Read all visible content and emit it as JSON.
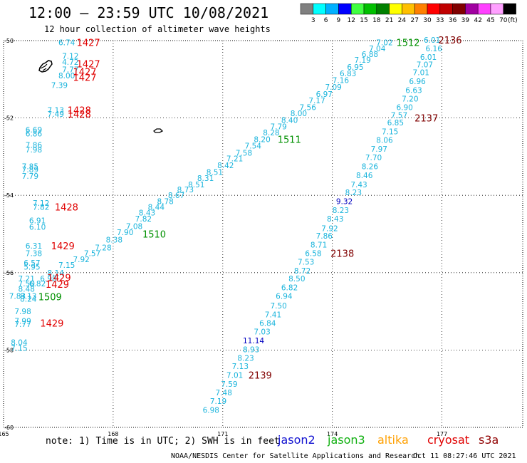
{
  "title": "12:00 – 23:59 UTC 10/08/2021",
  "subtitle": "12 hour collection of altimeter wave heights",
  "colorbar": {
    "unit": "(ft)",
    "entries": [
      {
        "color": "#808080",
        "label": "3"
      },
      {
        "color": "#00ffff",
        "label": "6"
      },
      {
        "color": "#00b0ff",
        "label": "9"
      },
      {
        "color": "#0000ff",
        "label": "12"
      },
      {
        "color": "#40ff40",
        "label": "15"
      },
      {
        "color": "#00c000",
        "label": "18"
      },
      {
        "color": "#008000",
        "label": "21"
      },
      {
        "color": "#ffff00",
        "label": "24"
      },
      {
        "color": "#ffc000",
        "label": "27"
      },
      {
        "color": "#ff8000",
        "label": "30"
      },
      {
        "color": "#ff0000",
        "label": "33"
      },
      {
        "color": "#c00000",
        "label": "36"
      },
      {
        "color": "#800000",
        "label": "39"
      },
      {
        "color": "#a000a0",
        "label": "42"
      },
      {
        "color": "#ff40ff",
        "label": "45"
      },
      {
        "color": "#ffa0ff",
        "label": "70"
      },
      {
        "color": "#000000",
        "label": ""
      }
    ]
  },
  "map": {
    "lon_labels": [
      "165",
      "168",
      "171",
      "174",
      "177"
    ],
    "lat_labels": [
      "-50",
      "-52",
      "-54",
      "-56",
      "-58",
      "-60"
    ],
    "grid_lons": [
      168,
      171,
      174,
      177
    ],
    "grid_lats": [
      -52,
      -54,
      -56,
      -58
    ]
  },
  "colors": {
    "swh_cyan": "#1ab4dc",
    "swh_blue": "#0000c0",
    "time_red": "#e00000",
    "time_green": "#009000",
    "time_darkred": "#800000"
  },
  "swh_labels": [
    {
      "t": "6.74",
      "lon": 166.5,
      "lat": -50.05
    },
    {
      "t": "7.12",
      "lon": 166.6,
      "lat": -50.4
    },
    {
      "t": "4.72",
      "lon": 166.6,
      "lat": -50.55
    },
    {
      "t": "7.77",
      "lon": 166.6,
      "lat": -50.75
    },
    {
      "t": "8.00",
      "lon": 166.5,
      "lat": -50.9
    },
    {
      "t": "7.39",
      "lon": 166.3,
      "lat": -51.15
    },
    {
      "t": "7.13",
      "lon": 166.2,
      "lat": -51.8
    },
    {
      "t": "7.49",
      "lon": 166.2,
      "lat": -51.9
    },
    {
      "t": "6.69",
      "lon": 165.6,
      "lat": -52.3
    },
    {
      "t": "6.86",
      "lon": 165.6,
      "lat": -52.4
    },
    {
      "t": "7.86",
      "lon": 165.6,
      "lat": -52.7
    },
    {
      "t": "7.98",
      "lon": 165.6,
      "lat": -52.82
    },
    {
      "t": "7.85",
      "lon": 165.5,
      "lat": -53.25
    },
    {
      "t": "7.89",
      "lon": 165.5,
      "lat": -53.33
    },
    {
      "t": "7.79",
      "lon": 165.5,
      "lat": -53.5
    },
    {
      "t": "7.12",
      "lon": 165.8,
      "lat": -54.2
    },
    {
      "t": "7.82",
      "lon": 165.8,
      "lat": -54.3
    },
    {
      "t": "6.91",
      "lon": 165.7,
      "lat": -54.65
    },
    {
      "t": "6.10",
      "lon": 165.7,
      "lat": -54.82
    },
    {
      "t": "6.31",
      "lon": 165.6,
      "lat": -55.3
    },
    {
      "t": "7.38",
      "lon": 165.6,
      "lat": -55.5
    },
    {
      "t": "6.57",
      "lon": 165.55,
      "lat": -55.75
    },
    {
      "t": "5.95",
      "lon": 165.55,
      "lat": -55.85
    },
    {
      "t": "7.21",
      "lon": 165.4,
      "lat": -56.15
    },
    {
      "t": "7.50",
      "lon": 165.4,
      "lat": -56.28
    },
    {
      "t": "6.82",
      "lon": 165.7,
      "lat": -56.28
    },
    {
      "t": "8.48",
      "lon": 165.4,
      "lat": -56.42
    },
    {
      "t": "7.83",
      "lon": 165.15,
      "lat": -56.6
    },
    {
      "t": "8.13",
      "lon": 165.45,
      "lat": -56.6
    },
    {
      "t": "8.24",
      "lon": 165.45,
      "lat": -56.68
    },
    {
      "t": "7.98",
      "lon": 165.3,
      "lat": -57.0
    },
    {
      "t": "7.99",
      "lon": 165.3,
      "lat": -57.25
    },
    {
      "t": "7.77",
      "lon": 165.3,
      "lat": -57.33
    },
    {
      "t": "8.04",
      "lon": 165.2,
      "lat": -57.8
    },
    {
      "t": "7.15",
      "lon": 165.2,
      "lat": -57.95
    },
    {
      "t": "8.14",
      "lon": 166.2,
      "lat": -56.0
    },
    {
      "t": "6.98",
      "lon": 166.0,
      "lat": -56.15
    },
    {
      "t": "7.15",
      "lon": 166.5,
      "lat": -55.8
    },
    {
      "t": "7.92",
      "lon": 166.9,
      "lat": -55.65
    },
    {
      "t": "7.57",
      "lon": 167.2,
      "lat": -55.5
    },
    {
      "t": "7.28",
      "lon": 167.5,
      "lat": -55.35
    },
    {
      "t": "8.38",
      "lon": 167.8,
      "lat": -55.15
    },
    {
      "t": "7.90",
      "lon": 168.1,
      "lat": -54.95
    },
    {
      "t": "7.08",
      "lon": 168.35,
      "lat": -54.8
    },
    {
      "t": "7.82",
      "lon": 168.6,
      "lat": -54.6
    },
    {
      "t": "8.43",
      "lon": 168.7,
      "lat": -54.45
    },
    {
      "t": "8.44",
      "lon": 168.95,
      "lat": -54.3
    },
    {
      "t": "8.78",
      "lon": 169.2,
      "lat": -54.15
    },
    {
      "t": "8.67",
      "lon": 169.5,
      "lat": -54.0
    },
    {
      "t": "8.73",
      "lon": 169.75,
      "lat": -53.85
    },
    {
      "t": "8.51",
      "lon": 170.05,
      "lat": -53.72
    },
    {
      "t": "8.31",
      "lon": 170.3,
      "lat": -53.55
    },
    {
      "t": "8.51",
      "lon": 170.55,
      "lat": -53.4
    },
    {
      "t": "8.42",
      "lon": 170.85,
      "lat": -53.22
    },
    {
      "t": "7.21",
      "lon": 171.1,
      "lat": -53.05
    },
    {
      "t": "7.58",
      "lon": 171.35,
      "lat": -52.9
    },
    {
      "t": "7.54",
      "lon": 171.6,
      "lat": -52.72
    },
    {
      "t": "8.20",
      "lon": 171.85,
      "lat": -52.55
    },
    {
      "t": "8.28",
      "lon": 172.1,
      "lat": -52.38
    },
    {
      "t": "7.79",
      "lon": 172.3,
      "lat": -52.22
    },
    {
      "t": "8.40",
      "lon": 172.6,
      "lat": -52.05
    },
    {
      "t": "8.00",
      "lon": 172.85,
      "lat": -51.88
    },
    {
      "t": "7.56",
      "lon": 173.1,
      "lat": -51.72
    },
    {
      "t": "7.17",
      "lon": 173.35,
      "lat": -51.55
    },
    {
      "t": "6.97",
      "lon": 173.55,
      "lat": -51.38
    },
    {
      "t": "7.09",
      "lon": 173.8,
      "lat": -51.2
    },
    {
      "t": "7.16",
      "lon": 174.0,
      "lat": -51.02
    },
    {
      "t": "6.83",
      "lon": 174.2,
      "lat": -50.85
    },
    {
      "t": "6.95",
      "lon": 174.4,
      "lat": -50.68
    },
    {
      "t": "7.19",
      "lon": 174.6,
      "lat": -50.5
    },
    {
      "t": "6.88",
      "lon": 174.8,
      "lat": -50.35
    },
    {
      "t": "7.04",
      "lon": 175.0,
      "lat": -50.2
    },
    {
      "t": "7.02",
      "lon": 175.2,
      "lat": -50.05
    },
    {
      "t": "6.01",
      "lon": 176.5,
      "lat": -49.98
    },
    {
      "t": "6.16",
      "lon": 176.55,
      "lat": -50.2
    },
    {
      "t": "6.01",
      "lon": 176.4,
      "lat": -50.42
    },
    {
      "t": "7.07",
      "lon": 176.3,
      "lat": -50.62
    },
    {
      "t": "7.01",
      "lon": 176.2,
      "lat": -50.82
    },
    {
      "t": "6.96",
      "lon": 176.1,
      "lat": -51.05
    },
    {
      "t": "6.63",
      "lon": 176.0,
      "lat": -51.28
    },
    {
      "t": "7.20",
      "lon": 175.9,
      "lat": -51.5
    },
    {
      "t": "6.90",
      "lon": 175.75,
      "lat": -51.72
    },
    {
      "t": "7.57",
      "lon": 175.6,
      "lat": -51.92
    },
    {
      "t": "6.85",
      "lon": 175.5,
      "lat": -52.12
    },
    {
      "t": "7.15",
      "lon": 175.35,
      "lat": -52.35
    },
    {
      "t": "8.06",
      "lon": 175.2,
      "lat": -52.57
    },
    {
      "t": "7.97",
      "lon": 175.05,
      "lat": -52.8
    },
    {
      "t": "7.70",
      "lon": 174.9,
      "lat": -53.02
    },
    {
      "t": "8.26",
      "lon": 174.8,
      "lat": -53.25
    },
    {
      "t": "8.46",
      "lon": 174.65,
      "lat": -53.48
    },
    {
      "t": "7.43",
      "lon": 174.5,
      "lat": -53.72
    },
    {
      "t": "8.23",
      "lon": 174.35,
      "lat": -53.92
    },
    {
      "t": "9.32",
      "lon": 174.1,
      "lat": -54.15
    },
    {
      "t": "8.23",
      "lon": 174.0,
      "lat": -54.38
    },
    {
      "t": "8.43",
      "lon": 173.85,
      "lat": -54.6
    },
    {
      "t": "7.92",
      "lon": 173.7,
      "lat": -54.85
    },
    {
      "t": "7.86",
      "lon": 173.55,
      "lat": -55.05
    },
    {
      "t": "8.71",
      "lon": 173.4,
      "lat": -55.28
    },
    {
      "t": "6.58",
      "lon": 173.25,
      "lat": -55.5
    },
    {
      "t": "7.53",
      "lon": 173.05,
      "lat": -55.72
    },
    {
      "t": "8.72",
      "lon": 172.95,
      "lat": -55.95
    },
    {
      "t": "8.50",
      "lon": 172.8,
      "lat": -56.15
    },
    {
      "t": "6.82",
      "lon": 172.6,
      "lat": -56.38
    },
    {
      "t": "6.94",
      "lon": 172.45,
      "lat": -56.6
    },
    {
      "t": "7.50",
      "lon": 172.3,
      "lat": -56.85
    },
    {
      "t": "7.41",
      "lon": 172.15,
      "lat": -57.08
    },
    {
      "t": "6.84",
      "lon": 172.0,
      "lat": -57.3
    },
    {
      "t": "7.03",
      "lon": 171.85,
      "lat": -57.52
    },
    {
      "t": "11.14",
      "lon": 171.55,
      "lat": -57.75
    },
    {
      "t": "8.93",
      "lon": 171.55,
      "lat": -57.98
    },
    {
      "t": "8.23",
      "lon": 171.4,
      "lat": -58.2
    },
    {
      "t": "7.13",
      "lon": 171.25,
      "lat": -58.42
    },
    {
      "t": "7.01",
      "lon": 171.1,
      "lat": -58.65
    },
    {
      "t": "7.59",
      "lon": 170.95,
      "lat": -58.88
    },
    {
      "t": "7.48",
      "lon": 170.8,
      "lat": -59.1
    },
    {
      "t": "7.19",
      "lon": 170.65,
      "lat": -59.32
    },
    {
      "t": "6.98",
      "lon": 170.45,
      "lat": -59.55
    }
  ],
  "blue_values": [
    "9.32",
    "11.14"
  ],
  "time_labels": [
    {
      "t": "1427",
      "lon": 167.0,
      "lat": -50.05,
      "c": "red"
    },
    {
      "t": "1427",
      "lon": 167.0,
      "lat": -50.6,
      "c": "red"
    },
    {
      "t": "1427",
      "lon": 166.9,
      "lat": -50.8,
      "c": "red"
    },
    {
      "t": "1427",
      "lon": 166.9,
      "lat": -50.95,
      "c": "red"
    },
    {
      "t": "1428",
      "lon": 166.75,
      "lat": -51.8,
      "c": "red"
    },
    {
      "t": "1428",
      "lon": 166.75,
      "lat": -51.9,
      "c": "red"
    },
    {
      "t": "1428",
      "lon": 166.4,
      "lat": -54.3,
      "c": "red"
    },
    {
      "t": "1429",
      "lon": 166.3,
      "lat": -55.3,
      "c": "red"
    },
    {
      "t": "1429",
      "lon": 166.2,
      "lat": -56.12,
      "c": "red"
    },
    {
      "t": "1429",
      "lon": 166.15,
      "lat": -56.3,
      "c": "red"
    },
    {
      "t": "1429",
      "lon": 166.0,
      "lat": -57.3,
      "c": "red"
    },
    {
      "t": "1509",
      "lon": 165.95,
      "lat": -56.62,
      "c": "green"
    },
    {
      "t": "1510",
      "lon": 168.8,
      "lat": -55.0,
      "c": "green"
    },
    {
      "t": "1511",
      "lon": 172.5,
      "lat": -52.55,
      "c": "green"
    },
    {
      "t": "1512",
      "lon": 175.75,
      "lat": -50.05,
      "c": "green"
    },
    {
      "t": "2136",
      "lon": 176.9,
      "lat": -49.98,
      "c": "darkred"
    },
    {
      "t": "2137",
      "lon": 176.25,
      "lat": -52.0,
      "c": "darkred"
    },
    {
      "t": "2138",
      "lon": 173.95,
      "lat": -55.5,
      "c": "darkred"
    },
    {
      "t": "2139",
      "lon": 171.7,
      "lat": -58.65,
      "c": "darkred"
    }
  ],
  "footer": {
    "note": "note: 1) Time is in UTC; 2) SWH is in feet",
    "satellites": [
      {
        "name": "jason2",
        "color": "#1010d0"
      },
      {
        "name": "jason3",
        "color": "#10b010"
      },
      {
        "name": "altika",
        "color": "#ffa000"
      },
      {
        "name": "cryosat",
        "color": "#e00000"
      },
      {
        "name": "s3a",
        "color": "#900000"
      }
    ],
    "credit": "NOAA/NESDIS Center for Satellite Applications and Research",
    "timestamp": "Oct 11 08:27:46 UTC 2021"
  }
}
